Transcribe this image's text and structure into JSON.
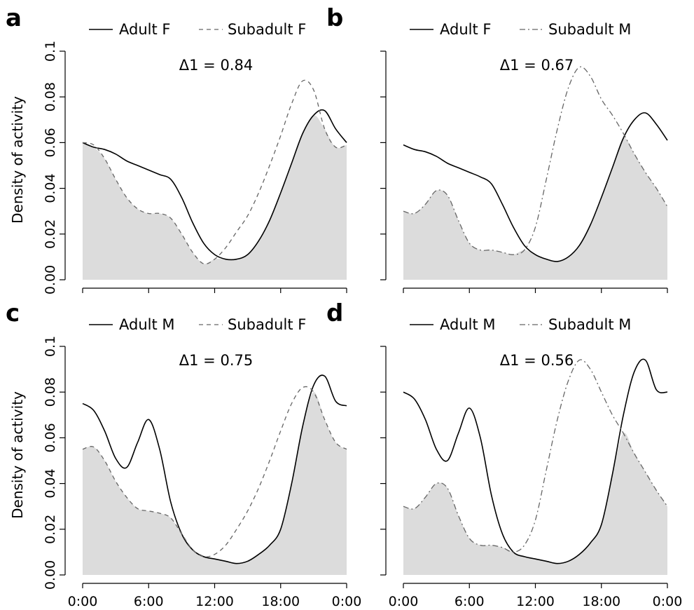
{
  "colors": {
    "overlap_fill": "#dcdcdc",
    "line": "#000000",
    "dashed_line": "#666666",
    "background": "#ffffff"
  },
  "chart_data": [
    {
      "type": "line",
      "panel_label": "a",
      "annotation": "Δ1 = 0.84",
      "ylabel": "Density of activity",
      "x_tick_labels": [],
      "y_tick_labels": [
        "0.00",
        "0.02",
        "0.04",
        "0.06",
        "0.08",
        "0.1"
      ],
      "xlim": [
        0,
        24
      ],
      "ylim": [
        0,
        0.1
      ],
      "legend_position": "top",
      "shaded_overlap": true,
      "series": [
        {
          "name": "Adult F",
          "style": "solid",
          "x": [
            0,
            1,
            2,
            3,
            4,
            5,
            6,
            7,
            8,
            9,
            10,
            11,
            12,
            13,
            14,
            15,
            16,
            17,
            18,
            19,
            20,
            21,
            22,
            23,
            24
          ],
          "y": [
            0.06,
            0.058,
            0.057,
            0.055,
            0.052,
            0.05,
            0.048,
            0.046,
            0.044,
            0.036,
            0.025,
            0.016,
            0.011,
            0.009,
            0.009,
            0.011,
            0.017,
            0.026,
            0.038,
            0.051,
            0.064,
            0.072,
            0.074,
            0.066,
            0.06
          ]
        },
        {
          "name": "Subadult F",
          "style": "dashed",
          "x": [
            0,
            1,
            2,
            3,
            4,
            5,
            6,
            7,
            8,
            9,
            10,
            11,
            12,
            13,
            14,
            15,
            16,
            17,
            18,
            19,
            20,
            21,
            22,
            23,
            24
          ],
          "y": [
            0.06,
            0.059,
            0.053,
            0.044,
            0.036,
            0.031,
            0.029,
            0.029,
            0.027,
            0.02,
            0.012,
            0.007,
            0.009,
            0.014,
            0.021,
            0.028,
            0.038,
            0.05,
            0.063,
            0.077,
            0.087,
            0.083,
            0.066,
            0.058,
            0.059
          ]
        }
      ]
    },
    {
      "type": "line",
      "panel_label": "b",
      "annotation": "Δ1 = 0.67",
      "ylabel": "",
      "x_tick_labels": [],
      "y_tick_labels": [],
      "xlim": [
        0,
        24
      ],
      "ylim": [
        0,
        0.1
      ],
      "legend_position": "top",
      "shaded_overlap": true,
      "series": [
        {
          "name": "Adult F",
          "style": "solid",
          "x": [
            0,
            1,
            2,
            3,
            4,
            5,
            6,
            7,
            8,
            9,
            10,
            11,
            12,
            13,
            14,
            15,
            16,
            17,
            18,
            19,
            20,
            21,
            22,
            23,
            24
          ],
          "y": [
            0.059,
            0.057,
            0.056,
            0.054,
            0.051,
            0.049,
            0.047,
            0.045,
            0.042,
            0.033,
            0.023,
            0.015,
            0.011,
            0.009,
            0.008,
            0.01,
            0.015,
            0.024,
            0.036,
            0.049,
            0.062,
            0.07,
            0.073,
            0.068,
            0.061
          ]
        },
        {
          "name": "Subadult M",
          "style": "dashdot",
          "x": [
            0,
            1,
            2,
            3,
            4,
            5,
            6,
            7,
            8,
            9,
            10,
            11,
            12,
            13,
            14,
            15,
            16,
            17,
            18,
            19,
            20,
            21,
            22,
            23,
            24
          ],
          "y": [
            0.03,
            0.029,
            0.033,
            0.039,
            0.037,
            0.026,
            0.016,
            0.013,
            0.013,
            0.012,
            0.011,
            0.013,
            0.023,
            0.044,
            0.066,
            0.084,
            0.093,
            0.089,
            0.079,
            0.072,
            0.064,
            0.055,
            0.047,
            0.04,
            0.032
          ]
        }
      ]
    },
    {
      "type": "line",
      "panel_label": "c",
      "annotation": "Δ1 = 0.75",
      "ylabel": "Density of activity",
      "x_tick_labels": [
        "0:00",
        "6:00",
        "12:00",
        "18:00",
        "0:00"
      ],
      "y_tick_labels": [
        "0.00",
        "0.02",
        "0.04",
        "0.06",
        "0.08",
        "0.1"
      ],
      "xlim": [
        0,
        24
      ],
      "ylim": [
        0,
        0.1
      ],
      "legend_position": "top",
      "shaded_overlap": true,
      "series": [
        {
          "name": "Adult M",
          "style": "solid",
          "x": [
            0,
            1,
            2,
            3,
            4,
            5,
            6,
            7,
            8,
            9,
            10,
            11,
            12,
            13,
            14,
            15,
            16,
            17,
            18,
            19,
            20,
            21,
            22,
            23,
            24
          ],
          "y": [
            0.075,
            0.072,
            0.063,
            0.051,
            0.047,
            0.058,
            0.068,
            0.055,
            0.032,
            0.018,
            0.011,
            0.008,
            0.007,
            0.006,
            0.005,
            0.006,
            0.009,
            0.013,
            0.02,
            0.04,
            0.065,
            0.083,
            0.087,
            0.076,
            0.074
          ]
        },
        {
          "name": "Subadult F",
          "style": "dashed",
          "x": [
            0,
            1,
            2,
            3,
            4,
            5,
            6,
            7,
            8,
            9,
            10,
            11,
            12,
            13,
            14,
            15,
            16,
            17,
            18,
            19,
            20,
            21,
            22,
            23,
            24
          ],
          "y": [
            0.055,
            0.056,
            0.05,
            0.041,
            0.034,
            0.029,
            0.028,
            0.027,
            0.025,
            0.018,
            0.011,
            0.008,
            0.009,
            0.013,
            0.02,
            0.028,
            0.038,
            0.05,
            0.063,
            0.075,
            0.082,
            0.08,
            0.068,
            0.058,
            0.055
          ]
        }
      ]
    },
    {
      "type": "line",
      "panel_label": "d",
      "annotation": "Δ1 = 0.56",
      "ylabel": "",
      "x_tick_labels": [
        "0:00",
        "6:00",
        "12:00",
        "18:00",
        "0:00"
      ],
      "y_tick_labels": [],
      "xlim": [
        0,
        24
      ],
      "ylim": [
        0,
        0.1
      ],
      "legend_position": "top",
      "shaded_overlap": true,
      "series": [
        {
          "name": "Adult M",
          "style": "solid",
          "x": [
            0,
            1,
            2,
            3,
            4,
            5,
            6,
            7,
            8,
            9,
            10,
            11,
            12,
            13,
            14,
            15,
            16,
            17,
            18,
            19,
            20,
            21,
            22,
            23,
            24
          ],
          "y": [
            0.08,
            0.077,
            0.068,
            0.055,
            0.05,
            0.062,
            0.073,
            0.06,
            0.035,
            0.018,
            0.01,
            0.008,
            0.007,
            0.006,
            0.005,
            0.006,
            0.009,
            0.014,
            0.022,
            0.044,
            0.07,
            0.089,
            0.094,
            0.081,
            0.08
          ]
        },
        {
          "name": "Subadult M",
          "style": "dashdot",
          "x": [
            0,
            1,
            2,
            3,
            4,
            5,
            6,
            7,
            8,
            9,
            10,
            11,
            12,
            13,
            14,
            15,
            16,
            17,
            18,
            19,
            20,
            21,
            22,
            23,
            24
          ],
          "y": [
            0.03,
            0.029,
            0.034,
            0.04,
            0.038,
            0.026,
            0.016,
            0.013,
            0.013,
            0.012,
            0.01,
            0.013,
            0.024,
            0.046,
            0.068,
            0.085,
            0.094,
            0.09,
            0.08,
            0.07,
            0.062,
            0.053,
            0.045,
            0.037,
            0.03
          ]
        }
      ]
    }
  ]
}
